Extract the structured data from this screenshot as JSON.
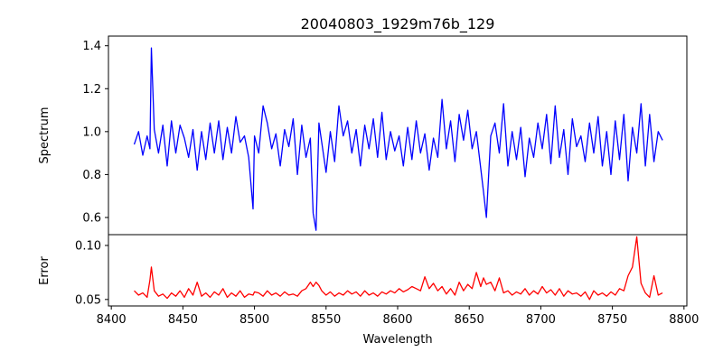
{
  "chart_data": {
    "type": "line",
    "title": "20040803_1929m76b_129",
    "xlabel": "Wavelength",
    "xlim": [
      8398,
      8802
    ],
    "xticks": [
      8400,
      8450,
      8500,
      8550,
      8600,
      8650,
      8700,
      8750,
      8800
    ],
    "panels": [
      {
        "ylabel": "Spectrum",
        "ylim": [
          0.52,
          1.445
        ],
        "yticks": [
          0.6,
          0.8,
          1.0,
          1.2,
          1.4
        ],
        "ytick_labels": [
          "0.6",
          "0.8",
          "1.0",
          "1.2",
          "1.4"
        ],
        "series": [
          {
            "color": "#0000ff",
            "x": [
              8416,
              8419,
              8422,
              8425,
              8427,
              8428,
              8430,
              8433,
              8436,
              8439,
              8442,
              8445,
              8448,
              8451,
              8454,
              8457,
              8460,
              8463,
              8466,
              8469,
              8472,
              8475,
              8478,
              8481,
              8484,
              8487,
              8490,
              8493,
              8496,
              8499,
              8500,
              8503,
              8506,
              8509,
              8512,
              8515,
              8518,
              8521,
              8524,
              8527,
              8530,
              8533,
              8536,
              8539,
              8541,
              8543,
              8545,
              8547,
              8550,
              8553,
              8556,
              8559,
              8562,
              8565,
              8568,
              8571,
              8574,
              8577,
              8580,
              8583,
              8586,
              8589,
              8592,
              8595,
              8598,
              8601,
              8604,
              8607,
              8610,
              8613,
              8616,
              8619,
              8622,
              8625,
              8628,
              8631,
              8634,
              8637,
              8640,
              8643,
              8646,
              8649,
              8652,
              8655,
              8658,
              8660,
              8662,
              8665,
              8668,
              8671,
              8674,
              8677,
              8680,
              8683,
              8686,
              8689,
              8692,
              8695,
              8698,
              8701,
              8704,
              8707,
              8710,
              8713,
              8716,
              8719,
              8722,
              8725,
              8728,
              8731,
              8734,
              8737,
              8740,
              8743,
              8746,
              8749,
              8752,
              8755,
              8758,
              8761,
              8764,
              8767,
              8770,
              8773,
              8776,
              8779,
              8782,
              8785
            ],
            "y": [
              0.94,
              1.0,
              0.89,
              0.98,
              0.92,
              1.39,
              1.01,
              0.9,
              1.03,
              0.84,
              1.05,
              0.9,
              1.03,
              0.97,
              0.88,
              1.01,
              0.82,
              1.0,
              0.87,
              1.04,
              0.9,
              1.05,
              0.87,
              1.02,
              0.9,
              1.07,
              0.95,
              0.98,
              0.88,
              0.64,
              0.98,
              0.9,
              1.12,
              1.04,
              0.92,
              0.99,
              0.84,
              1.01,
              0.93,
              1.06,
              0.8,
              1.03,
              0.88,
              0.97,
              0.62,
              0.54,
              1.04,
              0.95,
              0.81,
              1.0,
              0.86,
              1.12,
              0.98,
              1.05,
              0.9,
              1.01,
              0.84,
              1.03,
              0.92,
              1.06,
              0.88,
              1.09,
              0.87,
              1.0,
              0.91,
              0.98,
              0.84,
              1.02,
              0.87,
              1.05,
              0.9,
              0.99,
              0.82,
              0.97,
              0.88,
              1.15,
              0.92,
              1.05,
              0.86,
              1.08,
              0.96,
              1.1,
              0.92,
              1.0,
              0.83,
              0.72,
              0.6,
              0.98,
              1.04,
              0.9,
              1.13,
              0.84,
              1.0,
              0.87,
              1.02,
              0.79,
              0.97,
              0.88,
              1.04,
              0.92,
              1.08,
              0.85,
              1.12,
              0.88,
              1.01,
              0.8,
              1.06,
              0.93,
              0.98,
              0.86,
              1.04,
              0.9,
              1.07,
              0.84,
              1.0,
              0.8,
              1.05,
              0.87,
              1.08,
              0.77,
              1.02,
              0.9,
              1.13,
              0.84,
              1.08,
              0.86,
              1.0,
              0.96
            ]
          }
        ]
      },
      {
        "ylabel": "Error",
        "ylim": [
          0.044,
          0.11
        ],
        "yticks": [
          0.05,
          0.1
        ],
        "ytick_labels": [
          "0.05",
          "0.10"
        ],
        "series": [
          {
            "color": "#ff0000",
            "x": [
              8416,
              8419,
              8422,
              8425,
              8427,
              8428,
              8430,
              8433,
              8436,
              8439,
              8442,
              8445,
              8448,
              8451,
              8454,
              8457,
              8460,
              8463,
              8466,
              8469,
              8472,
              8475,
              8478,
              8481,
              8484,
              8487,
              8490,
              8493,
              8496,
              8499,
              8500,
              8503,
              8506,
              8509,
              8512,
              8515,
              8518,
              8521,
              8524,
              8527,
              8530,
              8533,
              8536,
              8539,
              8541,
              8543,
              8545,
              8547,
              8550,
              8553,
              8556,
              8559,
              8562,
              8565,
              8568,
              8571,
              8574,
              8577,
              8580,
              8583,
              8586,
              8589,
              8592,
              8595,
              8598,
              8601,
              8604,
              8607,
              8610,
              8613,
              8616,
              8619,
              8622,
              8625,
              8628,
              8631,
              8634,
              8637,
              8640,
              8643,
              8646,
              8649,
              8652,
              8655,
              8658,
              8660,
              8662,
              8665,
              8668,
              8671,
              8674,
              8677,
              8680,
              8683,
              8686,
              8689,
              8692,
              8695,
              8698,
              8701,
              8704,
              8707,
              8710,
              8713,
              8716,
              8719,
              8722,
              8725,
              8728,
              8731,
              8734,
              8737,
              8740,
              8743,
              8746,
              8749,
              8752,
              8755,
              8758,
              8761,
              8764,
              8767,
              8770,
              8773,
              8776,
              8779,
              8782,
              8785
            ],
            "y": [
              0.058,
              0.054,
              0.056,
              0.052,
              0.068,
              0.08,
              0.058,
              0.053,
              0.055,
              0.051,
              0.056,
              0.053,
              0.058,
              0.052,
              0.06,
              0.054,
              0.066,
              0.053,
              0.056,
              0.052,
              0.057,
              0.054,
              0.06,
              0.052,
              0.056,
              0.053,
              0.058,
              0.052,
              0.055,
              0.054,
              0.057,
              0.056,
              0.053,
              0.058,
              0.054,
              0.056,
              0.053,
              0.057,
              0.054,
              0.055,
              0.053,
              0.058,
              0.06,
              0.066,
              0.062,
              0.066,
              0.063,
              0.058,
              0.054,
              0.057,
              0.053,
              0.056,
              0.054,
              0.058,
              0.055,
              0.057,
              0.053,
              0.058,
              0.054,
              0.056,
              0.053,
              0.057,
              0.055,
              0.058,
              0.056,
              0.06,
              0.057,
              0.059,
              0.062,
              0.06,
              0.058,
              0.071,
              0.06,
              0.065,
              0.058,
              0.062,
              0.055,
              0.06,
              0.054,
              0.066,
              0.058,
              0.064,
              0.06,
              0.075,
              0.062,
              0.07,
              0.064,
              0.066,
              0.058,
              0.07,
              0.056,
              0.058,
              0.054,
              0.057,
              0.055,
              0.06,
              0.054,
              0.058,
              0.055,
              0.062,
              0.056,
              0.059,
              0.054,
              0.06,
              0.053,
              0.058,
              0.055,
              0.056,
              0.053,
              0.057,
              0.05,
              0.058,
              0.054,
              0.056,
              0.053,
              0.057,
              0.054,
              0.06,
              0.058,
              0.072,
              0.08,
              0.108,
              0.065,
              0.056,
              0.052,
              0.072,
              0.054,
              0.056
            ]
          }
        ]
      }
    ]
  }
}
